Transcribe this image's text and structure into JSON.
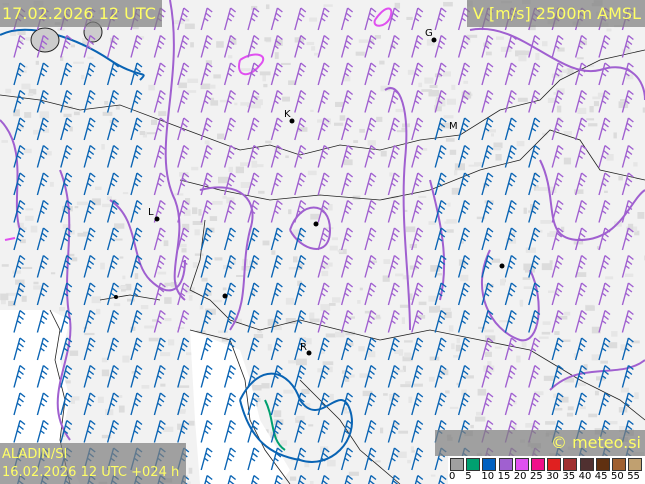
{
  "header": {
    "valid_time": "17.02.2026 12 UTC",
    "field": "V [m/s] 2500m AMSL"
  },
  "footer": {
    "model": "ALADIN/SI",
    "run": "16.02.2026 12 UTC +024 h",
    "copyright": "© meteo.si"
  },
  "legend": {
    "colors": [
      "#a0a0a0",
      "#00a070",
      "#0060c0",
      "#a060d0",
      "#e050f0",
      "#f0108a",
      "#e02020",
      "#a03030",
      "#503030",
      "#603010",
      "#a06030",
      "#c0a070"
    ],
    "labels": [
      "0",
      "5",
      "10",
      "15",
      "20",
      "25",
      "30",
      "35",
      "40",
      "45",
      "50",
      "55"
    ]
  },
  "cities": [
    {
      "label": "G"
    },
    {
      "label": "K"
    },
    {
      "label": "M"
    },
    {
      "label": "L"
    },
    {
      "label": "R"
    }
  ],
  "barb_colors": {
    "blue": "#0a64b4",
    "purple": "#a060d0"
  }
}
